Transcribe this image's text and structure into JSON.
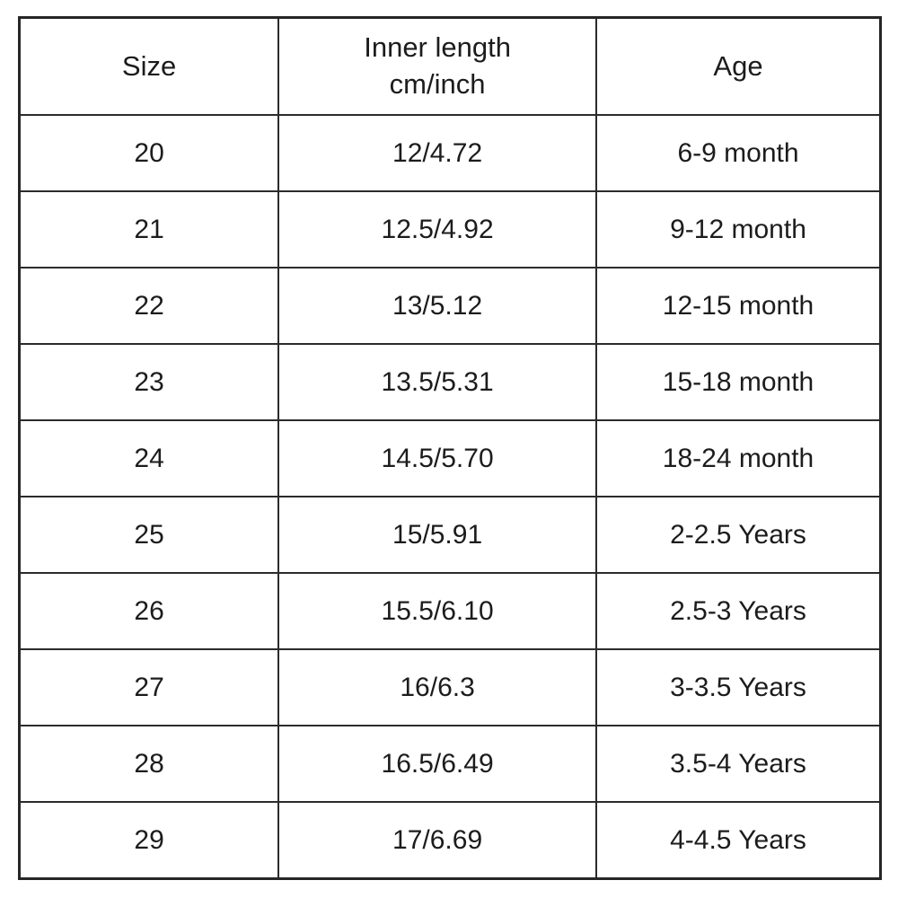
{
  "chart_data": {
    "type": "table",
    "title": "",
    "columns": [
      "Size",
      "Inner length cm/inch",
      "Age"
    ],
    "rows": [
      [
        "20",
        "12/4.72",
        "6-9 month"
      ],
      [
        "21",
        "12.5/4.92",
        "9-12 month"
      ],
      [
        "22",
        "13/5.12",
        "12-15 month"
      ],
      [
        "23",
        "13.5/5.31",
        "15-18 month"
      ],
      [
        "24",
        "14.5/5.70",
        "18-24 month"
      ],
      [
        "25",
        "15/5.91",
        "2-2.5 Years"
      ],
      [
        "26",
        "15.5/6.10",
        "2.5-3 Years"
      ],
      [
        "27",
        "16/6.3",
        "3-3.5 Years"
      ],
      [
        "28",
        "16.5/6.49",
        "3.5-4 Years"
      ],
      [
        "29",
        "17/6.69",
        "4-4.5 Years"
      ]
    ]
  },
  "table": {
    "header": {
      "size": "Size",
      "inner_length_line1": "Inner length",
      "inner_length_line2": "cm/inch",
      "age": "Age"
    },
    "rows": [
      {
        "size": "20",
        "inner_length": "12/4.72",
        "age": "6-9 month"
      },
      {
        "size": "21",
        "inner_length": "12.5/4.92",
        "age": "9-12 month"
      },
      {
        "size": "22",
        "inner_length": "13/5.12",
        "age": "12-15 month"
      },
      {
        "size": "23",
        "inner_length": "13.5/5.31",
        "age": "15-18 month"
      },
      {
        "size": "24",
        "inner_length": "14.5/5.70",
        "age": "18-24 month"
      },
      {
        "size": "25",
        "inner_length": "15/5.91",
        "age": "2-2.5 Years"
      },
      {
        "size": "26",
        "inner_length": "15.5/6.10",
        "age": "2.5-3 Years"
      },
      {
        "size": "27",
        "inner_length": "16/6.3",
        "age": "3-3.5 Years"
      },
      {
        "size": "28",
        "inner_length": "16.5/6.49",
        "age": "3.5-4 Years"
      },
      {
        "size": "29",
        "inner_length": "17/6.69",
        "age": "4-4.5 Years"
      }
    ]
  },
  "colors": {
    "background": "#ffffff",
    "border": "#2b2b2b",
    "outer_border": "#262626",
    "text": "#1c1c1c"
  }
}
